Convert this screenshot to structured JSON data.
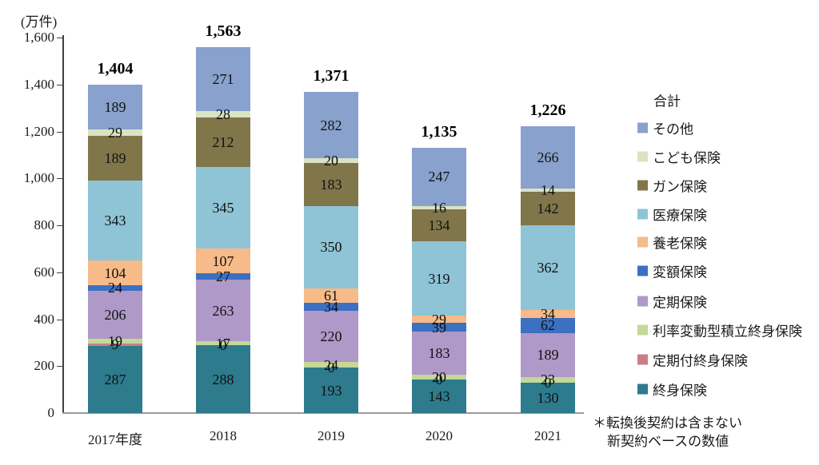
{
  "chart_data": {
    "type": "bar",
    "variant": "stacked",
    "unit_label": "(万件)",
    "categories": [
      "2017年度",
      "2018",
      "2019",
      "2020",
      "2021"
    ],
    "totals": [
      1404,
      1563,
      1371,
      1135,
      1226
    ],
    "totals_display": [
      "1,404",
      "1,563",
      "1,371",
      "1,135",
      "1,226"
    ],
    "series_bottom_to_top": [
      {
        "name": "終身保険",
        "color": "#2D7B8D",
        "values": [
          287,
          288,
          193,
          143,
          130
        ]
      },
      {
        "name": "定期付終身保険",
        "color": "#C97E87",
        "values": [
          9,
          0,
          0,
          0,
          0
        ]
      },
      {
        "name": "利率変動型積立終身保険",
        "color": "#C4D898",
        "values": [
          19,
          17,
          24,
          20,
          23
        ]
      },
      {
        "name": "定期保険",
        "color": "#AF99C8",
        "values": [
          206,
          263,
          220,
          183,
          189
        ]
      },
      {
        "name": "変額保険",
        "color": "#3C70C3",
        "values": [
          24,
          27,
          34,
          39,
          62
        ]
      },
      {
        "name": "養老保険",
        "color": "#F7BA89",
        "values": [
          104,
          107,
          61,
          29,
          34
        ]
      },
      {
        "name": "医療保険",
        "color": "#8EC4D6",
        "values": [
          343,
          345,
          350,
          319,
          362
        ]
      },
      {
        "name": "ガン保険",
        "color": "#80764A",
        "values": [
          189,
          212,
          183,
          134,
          142
        ]
      },
      {
        "name": "こども保険",
        "color": "#DAE4C3",
        "values": [
          29,
          28,
          20,
          16,
          14
        ]
      },
      {
        "name": "その他",
        "color": "#89A1CD",
        "values": [
          189,
          271,
          282,
          247,
          266
        ]
      }
    ],
    "y_axis": {
      "min": 0,
      "max": 1600,
      "tick_step": 200,
      "tick_values": [
        0,
        200,
        400,
        600,
        800,
        1000,
        1200,
        1400,
        1600
      ],
      "tick_labels": [
        "0",
        "200",
        "400",
        "600",
        "800",
        "1,000",
        "1,200",
        "1,400",
        "1,600"
      ],
      "grid": false
    },
    "legend": {
      "position": "right",
      "header": "合計",
      "items_top_to_bottom": [
        "その他",
        "こども保険",
        "ガン保険",
        "医療保険",
        "養老保険",
        "変額保険",
        "定期保険",
        "利率変動型積立終身保険",
        "定期付終身保険",
        "終身保険"
      ]
    },
    "footnote_lines": [
      "＊転換後契約は含まない",
      "新契約ベースの数値"
    ]
  }
}
